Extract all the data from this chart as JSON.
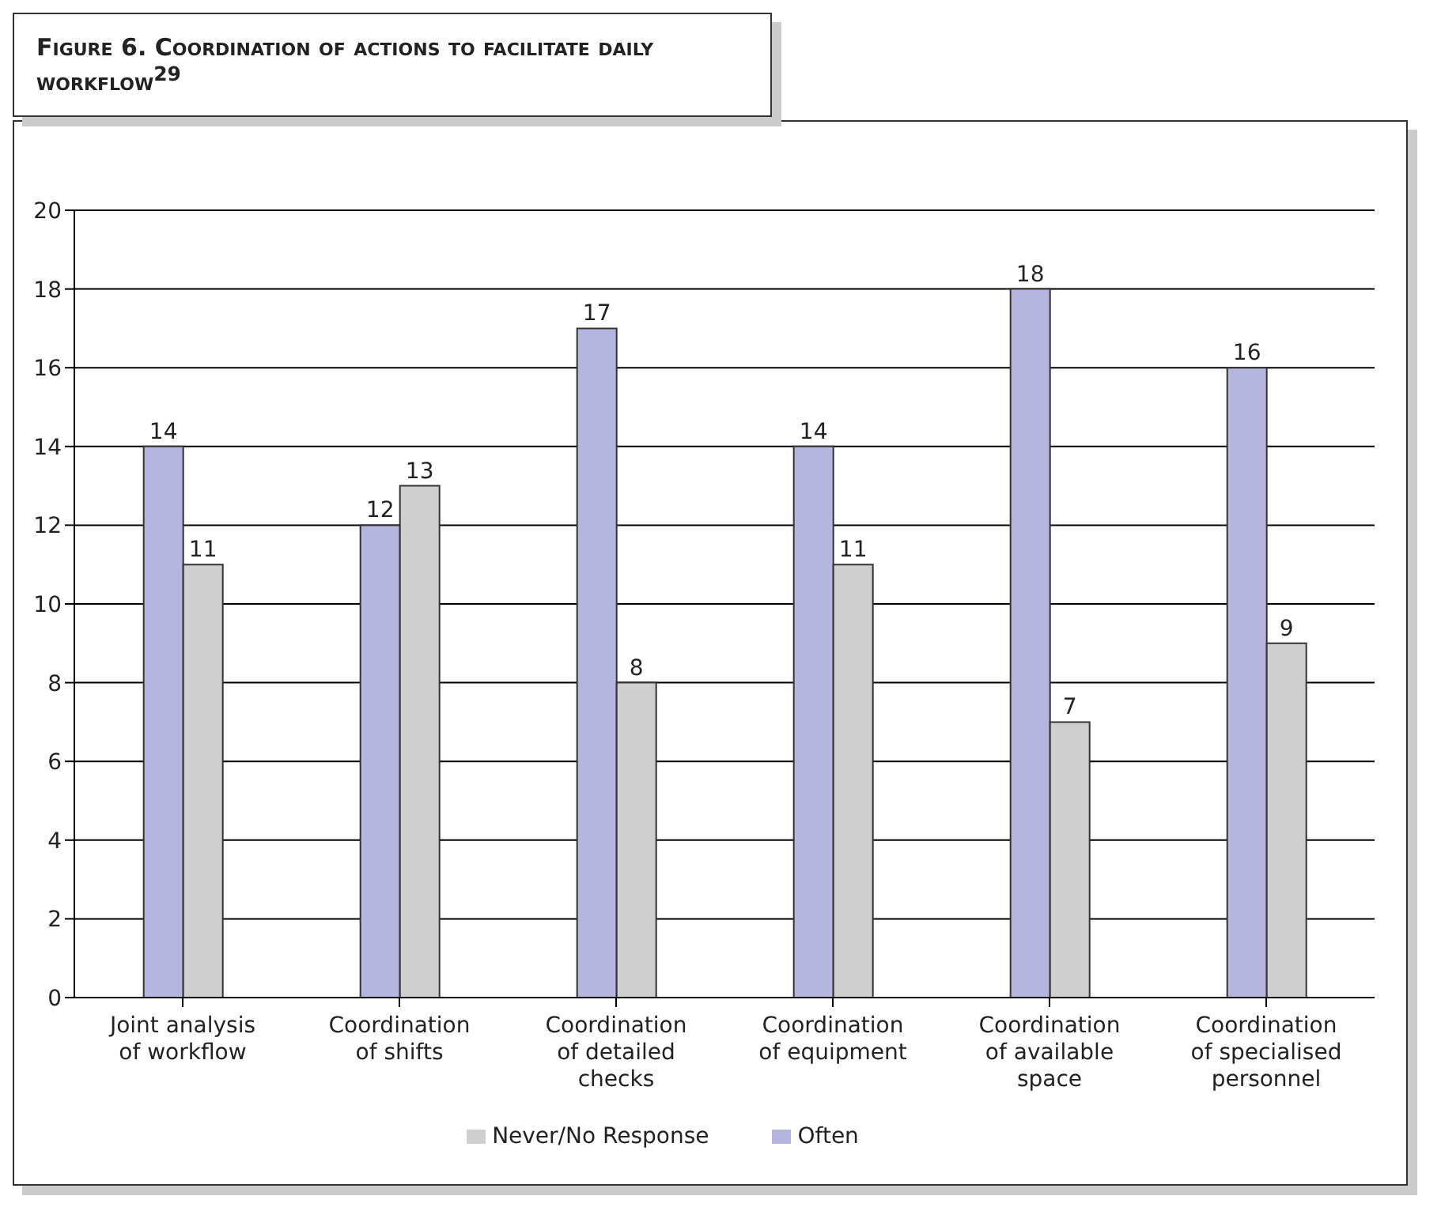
{
  "chart_data": {
    "type": "bar",
    "title": "Figure 6. Coordination of actions to facilitate daily workflow$^{29}$",
    "categories": [
      "Joint analysis of workflow",
      "Coordination of shifts",
      "Coordination of detailed checks",
      "Coordination of equipment",
      "Coordination of available space",
      "Coordination of specialised personnel"
    ],
    "series": [
      {
        "name": "Often",
        "color": "#b4b6e0",
        "values": [
          14,
          12,
          17,
          14,
          18,
          16
        ]
      },
      {
        "name": "Never/No Response",
        "color": "#cfcfcf",
        "values": [
          11,
          13,
          8,
          11,
          7,
          9
        ]
      }
    ],
    "ylim": [
      0,
      20
    ],
    "yticks": [
      0,
      2,
      4,
      6,
      8,
      10,
      12,
      14,
      16,
      18,
      20
    ],
    "grid": "y",
    "legend": "bottom",
    "data_labels": true
  }
}
